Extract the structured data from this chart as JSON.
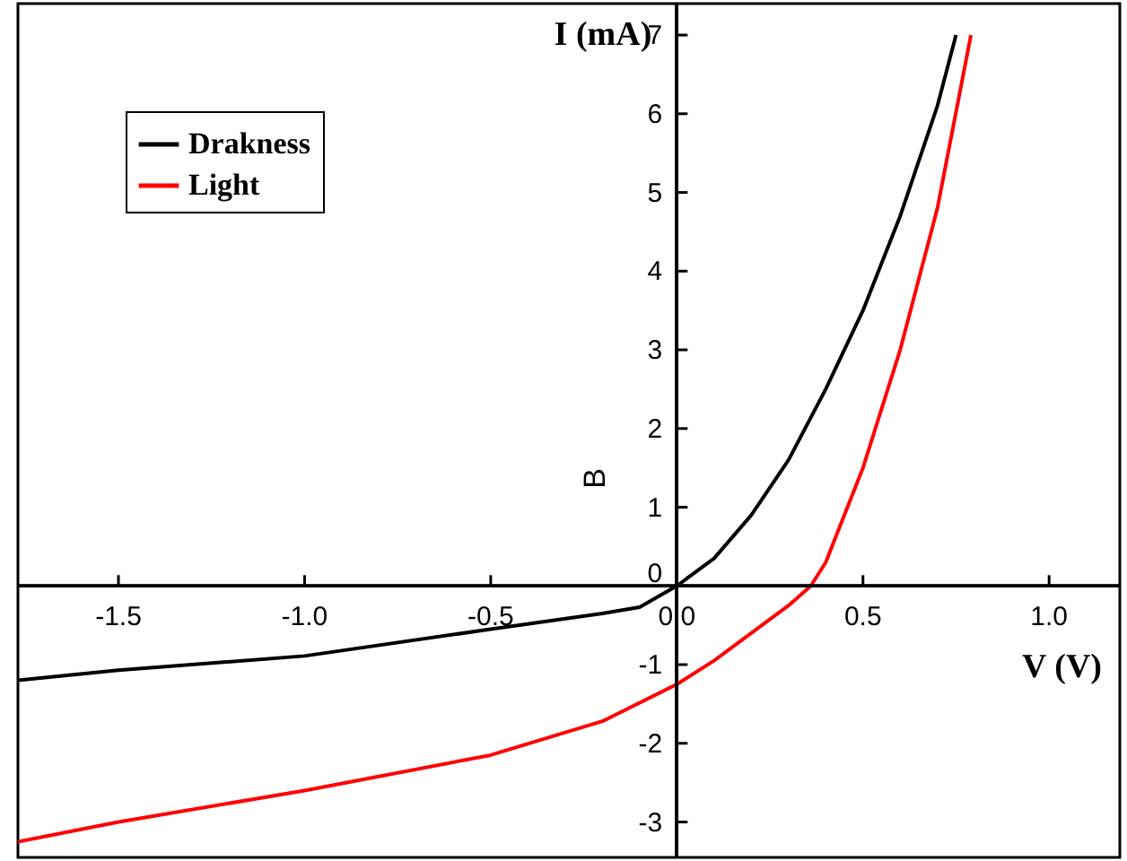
{
  "chart_data": {
    "type": "line",
    "xlabel": "V (V)",
    "ylabel": "I (mA)",
    "annotations": [
      "B"
    ],
    "xlim": [
      -1.77,
      1.19
    ],
    "ylim": [
      -3.45,
      7.4
    ],
    "xticks": [
      {
        "value": -1.5,
        "label": "-1.5"
      },
      {
        "value": -1.0,
        "label": "-1.0"
      },
      {
        "value": -0.5,
        "label": "-0.5"
      },
      {
        "value": 0,
        "label": "0.0"
      },
      {
        "value": 0.5,
        "label": "0.5"
      },
      {
        "value": 1.0,
        "label": "1.0"
      }
    ],
    "yticks": [
      -3,
      -2,
      -1,
      0,
      1,
      2,
      3,
      4,
      5,
      6,
      7
    ],
    "legend": "top left",
    "marker": "none",
    "line_style": "solid",
    "series": [
      {
        "name": "Drakness",
        "color": "#000000",
        "x": [
          -1.77,
          -1.5,
          -1.0,
          -0.5,
          -0.2,
          -0.1,
          0.0,
          0.1,
          0.2,
          0.3,
          0.4,
          0.5,
          0.6,
          0.7,
          0.75
        ],
        "values": [
          -1.2,
          -1.07,
          -0.89,
          -0.55,
          -0.35,
          -0.27,
          0.0,
          0.35,
          0.9,
          1.6,
          2.5,
          3.5,
          4.7,
          6.1,
          7.0
        ]
      },
      {
        "name": "Light",
        "color": "#ff0000",
        "x": [
          -1.77,
          -1.5,
          -1.0,
          -0.5,
          -0.2,
          0.0,
          0.1,
          0.2,
          0.3,
          0.36,
          0.4,
          0.45,
          0.5,
          0.6,
          0.7,
          0.79
        ],
        "values": [
          -3.25,
          -3.0,
          -2.6,
          -2.15,
          -1.72,
          -1.25,
          -0.95,
          -0.6,
          -0.25,
          0.0,
          0.3,
          0.9,
          1.5,
          3.0,
          4.8,
          7.0
        ]
      }
    ]
  }
}
